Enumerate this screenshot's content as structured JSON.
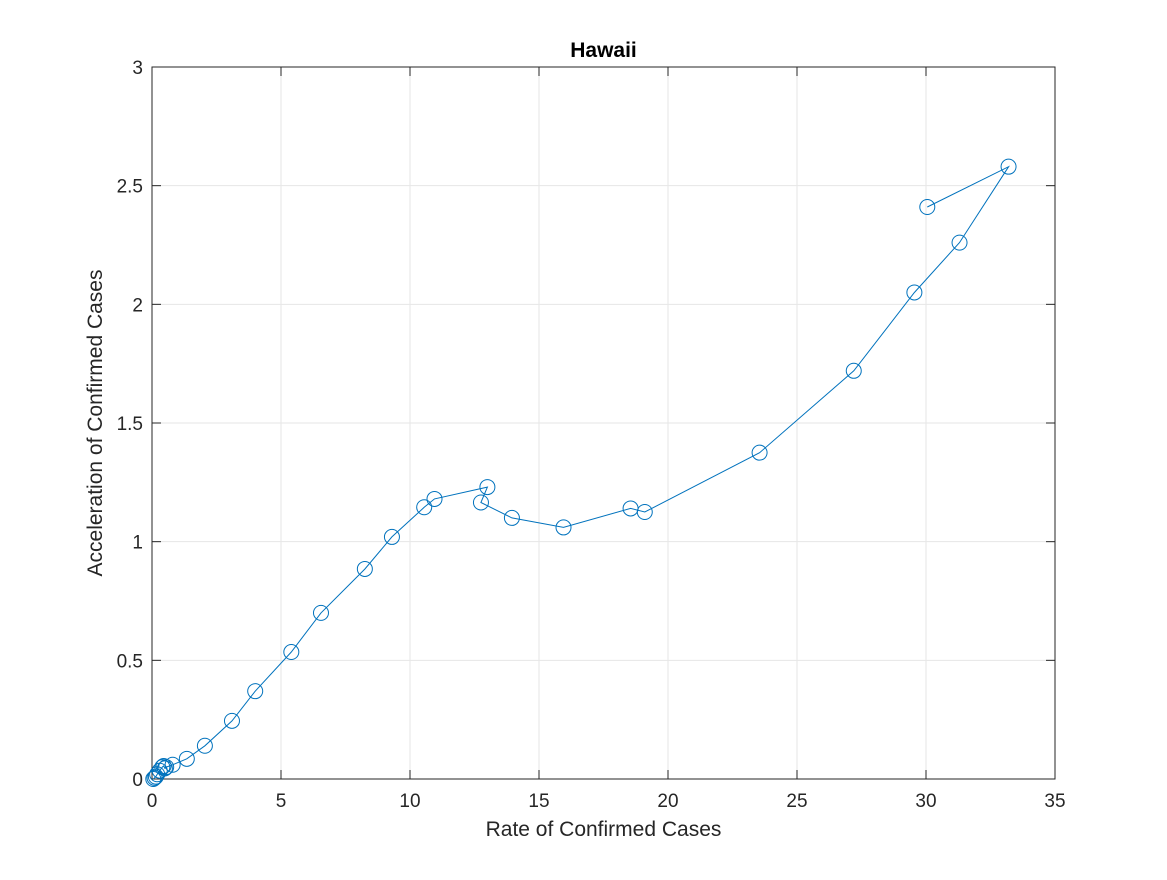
{
  "chart_data": {
    "type": "line",
    "title": "Hawaii",
    "xlabel": "Rate of Confirmed Cases",
    "ylabel": "Acceleration of Confirmed Cases",
    "xlim": [
      0,
      35
    ],
    "ylim": [
      0,
      3
    ],
    "xticks": [
      0,
      5,
      10,
      15,
      20,
      25,
      30,
      35
    ],
    "yticks": [
      0,
      0.5,
      1,
      1.5,
      2,
      2.5,
      3
    ],
    "xtick_labels": [
      "0",
      "5",
      "10",
      "15",
      "20",
      "25",
      "30",
      "35"
    ],
    "ytick_labels": [
      "0",
      "0.5",
      "1",
      "1.5",
      "2",
      "2.5",
      "3"
    ],
    "grid": true,
    "marker": "circle",
    "series": [
      {
        "color": "#0072BD",
        "x": [
          0.05,
          0.1,
          0.15,
          0.2,
          0.3,
          0.4,
          0.45,
          0.5,
          0.55,
          0.8,
          1.35,
          2.05,
          3.1,
          4.0,
          5.4,
          6.55,
          8.25,
          9.3,
          10.55,
          10.95,
          13.0,
          12.75,
          13.95,
          15.95,
          18.55,
          19.1,
          23.55,
          27.2,
          29.55,
          31.3,
          33.2,
          30.05
        ],
        "y": [
          0.0,
          0.005,
          0.01,
          0.02,
          0.035,
          0.05,
          0.055,
          0.045,
          0.05,
          0.06,
          0.085,
          0.14,
          0.245,
          0.37,
          0.535,
          0.7,
          0.885,
          1.02,
          1.145,
          1.18,
          1.23,
          1.165,
          1.1,
          1.06,
          1.14,
          1.125,
          1.375,
          1.72,
          2.05,
          2.26,
          2.58,
          2.41
        ]
      }
    ]
  }
}
